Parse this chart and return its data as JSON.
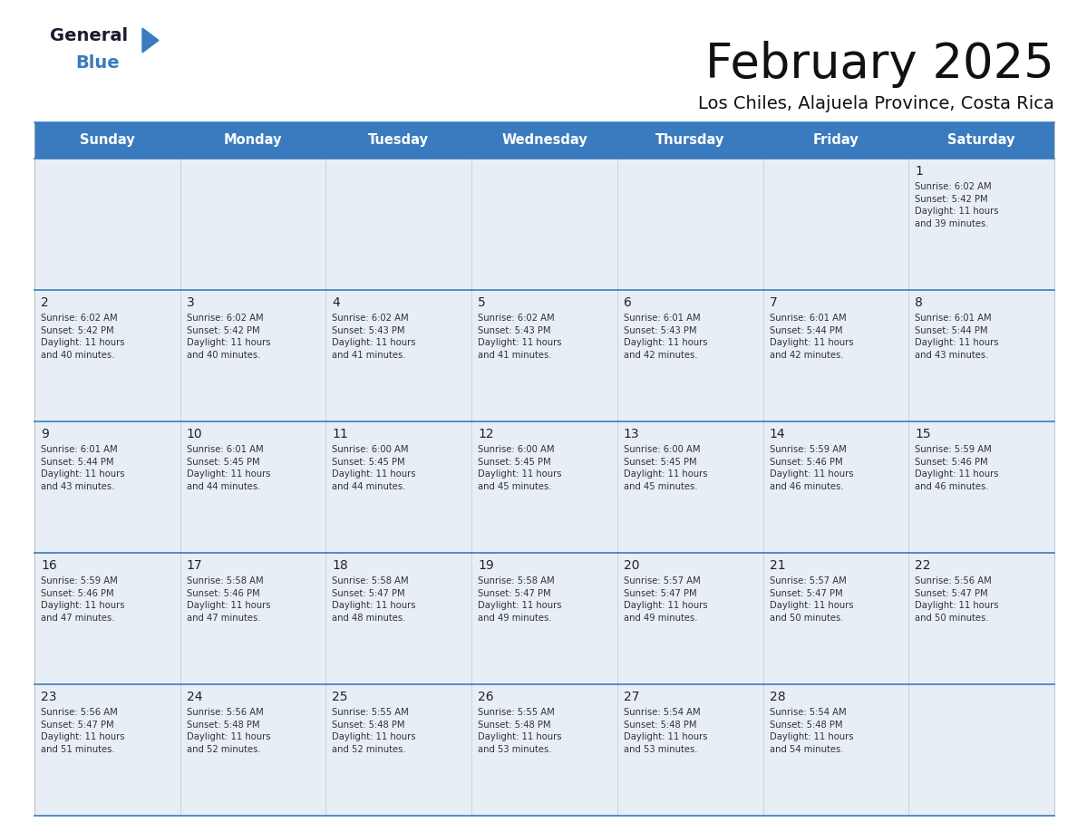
{
  "title": "February 2025",
  "subtitle": "Los Chiles, Alajuela Province, Costa Rica",
  "header_bg_color": "#3a7bbf",
  "header_text_color": "#ffffff",
  "cell_bg_color": "#e8eef5",
  "day_text_color": "#222222",
  "info_text_color": "#333333",
  "border_color": "#3a7bbf",
  "days_of_week": [
    "Sunday",
    "Monday",
    "Tuesday",
    "Wednesday",
    "Thursday",
    "Friday",
    "Saturday"
  ],
  "calendar": [
    [
      {
        "day": "",
        "info": ""
      },
      {
        "day": "",
        "info": ""
      },
      {
        "day": "",
        "info": ""
      },
      {
        "day": "",
        "info": ""
      },
      {
        "day": "",
        "info": ""
      },
      {
        "day": "",
        "info": ""
      },
      {
        "day": "1",
        "info": "Sunrise: 6:02 AM\nSunset: 5:42 PM\nDaylight: 11 hours\nand 39 minutes."
      }
    ],
    [
      {
        "day": "2",
        "info": "Sunrise: 6:02 AM\nSunset: 5:42 PM\nDaylight: 11 hours\nand 40 minutes."
      },
      {
        "day": "3",
        "info": "Sunrise: 6:02 AM\nSunset: 5:42 PM\nDaylight: 11 hours\nand 40 minutes."
      },
      {
        "day": "4",
        "info": "Sunrise: 6:02 AM\nSunset: 5:43 PM\nDaylight: 11 hours\nand 41 minutes."
      },
      {
        "day": "5",
        "info": "Sunrise: 6:02 AM\nSunset: 5:43 PM\nDaylight: 11 hours\nand 41 minutes."
      },
      {
        "day": "6",
        "info": "Sunrise: 6:01 AM\nSunset: 5:43 PM\nDaylight: 11 hours\nand 42 minutes."
      },
      {
        "day": "7",
        "info": "Sunrise: 6:01 AM\nSunset: 5:44 PM\nDaylight: 11 hours\nand 42 minutes."
      },
      {
        "day": "8",
        "info": "Sunrise: 6:01 AM\nSunset: 5:44 PM\nDaylight: 11 hours\nand 43 minutes."
      }
    ],
    [
      {
        "day": "9",
        "info": "Sunrise: 6:01 AM\nSunset: 5:44 PM\nDaylight: 11 hours\nand 43 minutes."
      },
      {
        "day": "10",
        "info": "Sunrise: 6:01 AM\nSunset: 5:45 PM\nDaylight: 11 hours\nand 44 minutes."
      },
      {
        "day": "11",
        "info": "Sunrise: 6:00 AM\nSunset: 5:45 PM\nDaylight: 11 hours\nand 44 minutes."
      },
      {
        "day": "12",
        "info": "Sunrise: 6:00 AM\nSunset: 5:45 PM\nDaylight: 11 hours\nand 45 minutes."
      },
      {
        "day": "13",
        "info": "Sunrise: 6:00 AM\nSunset: 5:45 PM\nDaylight: 11 hours\nand 45 minutes."
      },
      {
        "day": "14",
        "info": "Sunrise: 5:59 AM\nSunset: 5:46 PM\nDaylight: 11 hours\nand 46 minutes."
      },
      {
        "day": "15",
        "info": "Sunrise: 5:59 AM\nSunset: 5:46 PM\nDaylight: 11 hours\nand 46 minutes."
      }
    ],
    [
      {
        "day": "16",
        "info": "Sunrise: 5:59 AM\nSunset: 5:46 PM\nDaylight: 11 hours\nand 47 minutes."
      },
      {
        "day": "17",
        "info": "Sunrise: 5:58 AM\nSunset: 5:46 PM\nDaylight: 11 hours\nand 47 minutes."
      },
      {
        "day": "18",
        "info": "Sunrise: 5:58 AM\nSunset: 5:47 PM\nDaylight: 11 hours\nand 48 minutes."
      },
      {
        "day": "19",
        "info": "Sunrise: 5:58 AM\nSunset: 5:47 PM\nDaylight: 11 hours\nand 49 minutes."
      },
      {
        "day": "20",
        "info": "Sunrise: 5:57 AM\nSunset: 5:47 PM\nDaylight: 11 hours\nand 49 minutes."
      },
      {
        "day": "21",
        "info": "Sunrise: 5:57 AM\nSunset: 5:47 PM\nDaylight: 11 hours\nand 50 minutes."
      },
      {
        "day": "22",
        "info": "Sunrise: 5:56 AM\nSunset: 5:47 PM\nDaylight: 11 hours\nand 50 minutes."
      }
    ],
    [
      {
        "day": "23",
        "info": "Sunrise: 5:56 AM\nSunset: 5:47 PM\nDaylight: 11 hours\nand 51 minutes."
      },
      {
        "day": "24",
        "info": "Sunrise: 5:56 AM\nSunset: 5:48 PM\nDaylight: 11 hours\nand 52 minutes."
      },
      {
        "day": "25",
        "info": "Sunrise: 5:55 AM\nSunset: 5:48 PM\nDaylight: 11 hours\nand 52 minutes."
      },
      {
        "day": "26",
        "info": "Sunrise: 5:55 AM\nSunset: 5:48 PM\nDaylight: 11 hours\nand 53 minutes."
      },
      {
        "day": "27",
        "info": "Sunrise: 5:54 AM\nSunset: 5:48 PM\nDaylight: 11 hours\nand 53 minutes."
      },
      {
        "day": "28",
        "info": "Sunrise: 5:54 AM\nSunset: 5:48 PM\nDaylight: 11 hours\nand 54 minutes."
      },
      {
        "day": "",
        "info": ""
      }
    ]
  ],
  "logo_general_color": "#1a1a2e",
  "logo_blue_color": "#3a7bbf",
  "logo_triangle_color": "#3a7bbf",
  "fig_width": 11.88,
  "fig_height": 9.18,
  "dpi": 100
}
